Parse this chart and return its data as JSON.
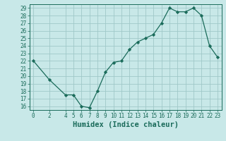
{
  "x": [
    0,
    2,
    4,
    5,
    6,
    7,
    8,
    9,
    10,
    11,
    12,
    13,
    14,
    15,
    16,
    17,
    18,
    19,
    20,
    21,
    22,
    23
  ],
  "y": [
    22,
    19.5,
    17.5,
    17.5,
    16,
    15.8,
    18,
    20.5,
    21.8,
    22,
    23.5,
    24.5,
    25,
    25.5,
    27,
    29,
    28.5,
    28.5,
    29,
    28,
    24,
    22.5
  ],
  "line_color": "#1a6b5a",
  "marker": "D",
  "marker_size": 2.2,
  "bg_color": "#c8e8e8",
  "grid_color": "#a0c8c8",
  "xlabel": "Humidex (Indice chaleur)",
  "xlim": [
    -0.5,
    23.5
  ],
  "ylim": [
    15.5,
    29.5
  ],
  "yticks": [
    16,
    17,
    18,
    19,
    20,
    21,
    22,
    23,
    24,
    25,
    26,
    27,
    28,
    29
  ],
  "xticks": [
    0,
    2,
    4,
    5,
    6,
    7,
    8,
    9,
    10,
    11,
    12,
    13,
    14,
    15,
    16,
    17,
    18,
    19,
    20,
    21,
    22,
    23
  ],
  "tick_label_fontsize": 5.5,
  "xlabel_fontsize": 7.5,
  "tick_color": "#1a6b5a",
  "spine_color": "#1a6b5a"
}
